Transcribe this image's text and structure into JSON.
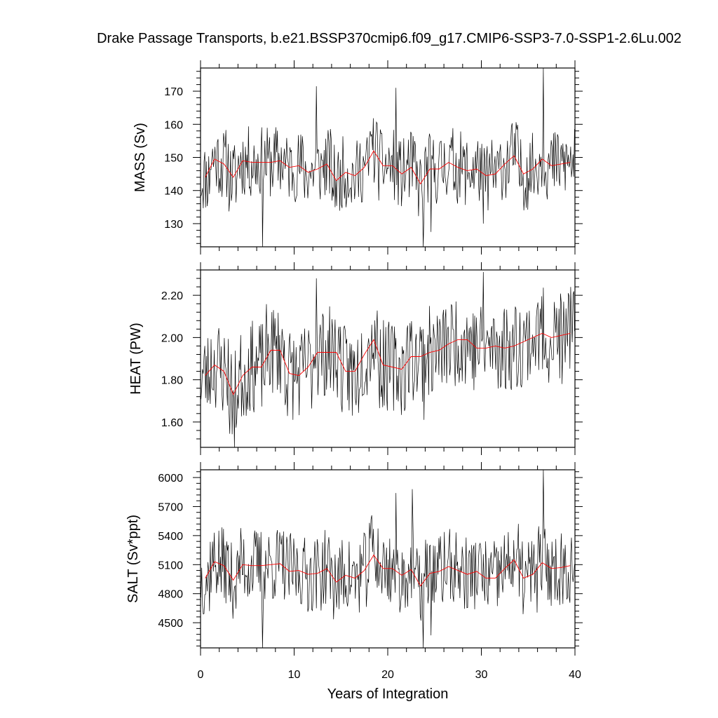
{
  "chart_data": {
    "type": "line",
    "title": "Drake Passage Transports, b.e21.BSSP370cmip6.f09_g17.CMIP6-SSP3-7.0-SSP1-2.6Lu.002",
    "xlabel": "Years of Integration",
    "xlim": [
      0,
      40
    ],
    "xticks": [
      0,
      10,
      20,
      30,
      40
    ],
    "xtick_labels": [
      "0",
      "10",
      "20",
      "30",
      "40"
    ],
    "grid": false,
    "colors": {
      "monthly": "#000000",
      "annual": "#ff0000"
    },
    "panels": [
      {
        "ylabel": "MASS (Sv)",
        "ylim": [
          123,
          177
        ],
        "yticks": [
          130,
          140,
          150,
          160,
          170
        ],
        "ytick_labels": [
          "130",
          "140",
          "150",
          "160",
          "170"
        ],
        "annual_x": [
          0.5,
          1.5,
          2.5,
          3.5,
          4.5,
          5.5,
          6.5,
          7.5,
          8.5,
          9.5,
          10.5,
          11.5,
          12.5,
          13.5,
          14.5,
          15.5,
          16.5,
          17.5,
          18.5,
          19.5,
          20.5,
          21.5,
          22.5,
          23.5,
          24.5,
          25.5,
          26.5,
          27.5,
          28.5,
          29.5,
          30.5,
          31.5,
          32.5,
          33.5,
          34.5,
          35.5,
          36.5,
          37.5,
          38.5,
          39.5
        ],
        "annual": [
          144,
          149.5,
          148,
          144,
          149,
          148.5,
          148.5,
          148.5,
          149,
          147,
          147.5,
          145.5,
          146.5,
          148,
          143,
          145.5,
          144.5,
          147,
          152,
          147.5,
          147.5,
          145,
          147,
          142,
          146.5,
          146.5,
          148.5,
          147,
          146,
          146.5,
          144.5,
          145,
          148,
          150.5,
          145,
          146.5,
          149.5,
          147.5,
          148,
          148.5
        ],
        "monthly_seed": 11,
        "monthly_amplitude": 5.5,
        "spikes": [
          [
            6.6,
            123
          ],
          [
            12.4,
            171.5
          ],
          [
            18.3,
            157
          ],
          [
            20.9,
            171
          ],
          [
            23.8,
            123
          ],
          [
            24.6,
            127.5
          ],
          [
            36.6,
            177
          ],
          [
            30.2,
            130
          ]
        ]
      },
      {
        "ylabel": "HEAT (PW)",
        "ylim": [
          1.48,
          2.32
        ],
        "yticks": [
          1.6,
          1.8,
          2.0,
          2.2
        ],
        "ytick_labels": [
          "1.60",
          "1.80",
          "2.00",
          "2.20"
        ],
        "annual_x": [
          0.5,
          1.5,
          2.5,
          3.5,
          4.5,
          5.5,
          6.5,
          7.5,
          8.5,
          9.5,
          10.5,
          11.5,
          12.5,
          13.5,
          14.5,
          15.5,
          16.5,
          17.5,
          18.5,
          19.5,
          20.5,
          21.5,
          22.5,
          23.5,
          24.5,
          25.5,
          26.5,
          27.5,
          28.5,
          29.5,
          30.5,
          31.5,
          32.5,
          33.5,
          34.5,
          35.5,
          36.5,
          37.5,
          38.5,
          39.5
        ],
        "annual": [
          1.82,
          1.87,
          1.84,
          1.73,
          1.82,
          1.86,
          1.86,
          1.94,
          1.94,
          1.83,
          1.82,
          1.86,
          1.93,
          1.93,
          1.93,
          1.84,
          1.84,
          1.92,
          1.99,
          1.87,
          1.86,
          1.85,
          1.91,
          1.91,
          1.93,
          1.94,
          1.97,
          1.99,
          1.99,
          1.95,
          1.95,
          1.96,
          1.95,
          1.96,
          1.98,
          2.0,
          2.02,
          2.0,
          2.01,
          2.02
        ],
        "monthly_seed": 23,
        "monthly_amplitude": 0.11,
        "spikes": [
          [
            3.6,
            1.48
          ],
          [
            12.4,
            2.28
          ],
          [
            16.2,
            1.63
          ],
          [
            23.9,
            1.61
          ],
          [
            30.2,
            2.31
          ],
          [
            38.6,
            1.78
          ],
          [
            39.3,
            2.21
          ]
        ]
      },
      {
        "ylabel": "SALT (Sv*ppt)",
        "ylim": [
          4240,
          6080
        ],
        "yticks": [
          4500,
          4800,
          5100,
          5400,
          5700,
          6000
        ],
        "ytick_labels": [
          "4500",
          "4800",
          "5100",
          "5400",
          "5700",
          "6000"
        ],
        "annual_x": [
          0.5,
          1.5,
          2.5,
          3.5,
          4.5,
          5.5,
          6.5,
          7.5,
          8.5,
          9.5,
          10.5,
          11.5,
          12.5,
          13.5,
          14.5,
          15.5,
          16.5,
          17.5,
          18.5,
          19.5,
          20.5,
          21.5,
          22.5,
          23.5,
          24.5,
          25.5,
          26.5,
          27.5,
          28.5,
          29.5,
          30.5,
          31.5,
          32.5,
          33.5,
          34.5,
          35.5,
          36.5,
          37.5,
          38.5,
          39.5
        ],
        "annual": [
          4960,
          5130,
          5090,
          4940,
          5100,
          5090,
          5090,
          5100,
          5110,
          5030,
          5040,
          5000,
          5010,
          5060,
          4920,
          4990,
          4960,
          5040,
          5200,
          5060,
          5060,
          4990,
          5050,
          4880,
          5010,
          5030,
          5080,
          5040,
          5000,
          5030,
          4960,
          4960,
          5060,
          5150,
          4960,
          5000,
          5120,
          5060,
          5070,
          5090
        ],
        "monthly_seed": 37,
        "monthly_amplitude": 200,
        "spikes": [
          [
            6.6,
            4240
          ],
          [
            18.3,
            5610
          ],
          [
            20.9,
            5840
          ],
          [
            22.6,
            5880
          ],
          [
            23.8,
            4240
          ],
          [
            24.6,
            4370
          ],
          [
            36.6,
            6080
          ]
        ]
      }
    ]
  }
}
